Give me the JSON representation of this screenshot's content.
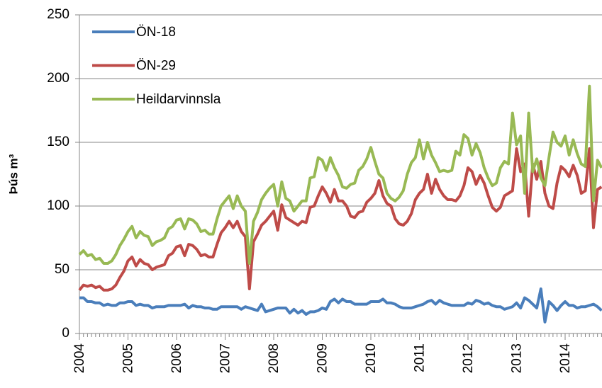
{
  "chart_data": {
    "type": "line",
    "y_label": "Þús m³",
    "categories": [
      "2004",
      null,
      null,
      null,
      null,
      null,
      null,
      null,
      null,
      null,
      null,
      null,
      "2005",
      null,
      null,
      null,
      null,
      null,
      null,
      null,
      null,
      null,
      null,
      null,
      "2006",
      null,
      null,
      null,
      null,
      null,
      null,
      null,
      null,
      null,
      null,
      null,
      "2007",
      null,
      null,
      null,
      null,
      null,
      null,
      null,
      null,
      null,
      null,
      null,
      "2008",
      null,
      null,
      null,
      null,
      null,
      null,
      null,
      null,
      null,
      null,
      null,
      "2009",
      null,
      null,
      null,
      null,
      null,
      null,
      null,
      null,
      null,
      null,
      null,
      "2010",
      null,
      null,
      null,
      null,
      null,
      null,
      null,
      null,
      null,
      null,
      null,
      "2011",
      null,
      null,
      null,
      null,
      null,
      null,
      null,
      null,
      null,
      null,
      null,
      "2012",
      null,
      null,
      null,
      null,
      null,
      null,
      null,
      null,
      null,
      null,
      null,
      "2013",
      null,
      null,
      null,
      null,
      null,
      null,
      null,
      null,
      null,
      null,
      null,
      "2014",
      null,
      null,
      null,
      null,
      null,
      null,
      null,
      null,
      null
    ],
    "series": [
      {
        "name": "ÖN-18",
        "color": "#4a7ebb",
        "values": [
          28,
          28,
          25,
          25,
          24,
          24,
          22,
          23,
          22,
          22,
          24,
          24,
          25,
          25,
          22,
          23,
          22,
          22,
          20,
          21,
          21,
          21,
          22,
          22,
          22,
          22,
          23,
          20,
          22,
          21,
          21,
          20,
          20,
          19,
          19,
          21,
          21,
          21,
          21,
          21,
          19,
          21,
          20,
          19,
          18,
          23,
          17,
          18,
          19,
          20,
          20,
          20,
          16,
          19,
          16,
          18,
          15,
          17,
          17,
          18,
          20,
          19,
          25,
          27,
          24,
          27,
          25,
          25,
          23,
          23,
          23,
          23,
          25,
          25,
          25,
          27,
          24,
          24,
          23,
          21,
          20,
          20,
          20,
          21,
          22,
          23,
          25,
          26,
          23,
          26,
          24,
          23,
          22,
          22,
          22,
          22,
          24,
          23,
          26,
          25,
          23,
          24,
          22,
          21,
          21,
          19,
          20,
          21,
          24,
          20,
          28,
          26,
          23,
          20,
          35,
          9,
          25,
          22,
          18,
          22,
          25,
          22,
          22,
          20,
          21,
          21,
          22,
          23,
          21,
          18
        ]
      },
      {
        "name": "ÖN-29",
        "color": "#be4b48",
        "values": [
          34,
          38,
          37,
          38,
          36,
          37,
          34,
          34,
          35,
          38,
          44,
          49,
          57,
          60,
          53,
          58,
          55,
          54,
          50,
          52,
          53,
          54,
          61,
          63,
          68,
          69,
          61,
          70,
          69,
          66,
          61,
          62,
          60,
          60,
          70,
          79,
          83,
          88,
          83,
          88,
          80,
          76,
          35,
          72,
          78,
          85,
          88,
          92,
          96,
          81,
          101,
          91,
          89,
          87,
          85,
          88,
          87,
          99,
          100,
          108,
          115,
          110,
          103,
          113,
          104,
          104,
          100,
          92,
          91,
          95,
          96,
          103,
          106,
          110,
          120,
          108,
          102,
          100,
          90,
          86,
          85,
          88,
          94,
          105,
          110,
          113,
          125,
          110,
          121,
          113,
          108,
          105,
          105,
          104,
          108,
          116,
          130,
          127,
          117,
          124,
          118,
          108,
          99,
          96,
          99,
          108,
          110,
          112,
          145,
          127,
          133,
          92,
          133,
          121,
          135,
          110,
          100,
          98,
          118,
          131,
          128,
          123,
          132,
          124,
          110,
          112,
          145,
          83,
          113,
          115
        ]
      },
      {
        "name": "Heildarvinnsla",
        "color": "#98b954",
        "values": [
          62,
          65,
          61,
          62,
          58,
          59,
          55,
          55,
          57,
          62,
          69,
          74,
          80,
          84,
          75,
          80,
          77,
          76,
          69,
          72,
          73,
          75,
          82,
          84,
          89,
          90,
          82,
          90,
          89,
          86,
          80,
          81,
          78,
          78,
          90,
          100,
          104,
          108,
          98,
          108,
          100,
          96,
          55,
          88,
          95,
          105,
          110,
          114,
          117,
          100,
          119,
          106,
          104,
          96,
          100,
          104,
          104,
          122,
          123,
          138,
          136,
          128,
          138,
          130,
          124,
          115,
          114,
          117,
          118,
          128,
          131,
          137,
          146,
          135,
          125,
          122,
          110,
          106,
          104,
          107,
          112,
          125,
          134,
          138,
          152,
          137,
          150,
          140,
          134,
          127,
          128,
          127,
          128,
          143,
          140,
          156,
          153,
          140,
          149,
          142,
          130,
          122,
          116,
          118,
          130,
          135,
          133,
          173,
          148,
          155,
          110,
          173,
          127,
          137,
          122,
          116,
          138,
          158,
          150,
          147,
          155,
          140,
          152,
          141,
          133,
          131,
          194,
          104,
          136,
          130
        ]
      }
    ],
    "ylim": [
      0,
      250
    ],
    "yticks": [
      0,
      50,
      100,
      150,
      200,
      250
    ],
    "grid": true,
    "legend": "upper left"
  }
}
